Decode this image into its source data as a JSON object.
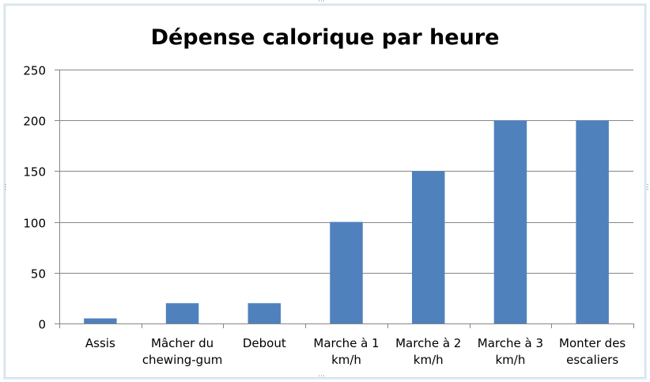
{
  "chart_data": {
    "type": "bar",
    "title": "Dépense calorique par heure",
    "xlabel": "",
    "ylabel": "",
    "categories": [
      [
        "Assis"
      ],
      [
        "Mâcher du",
        "chewing-gum"
      ],
      [
        "Debout"
      ],
      [
        "Marche à 1",
        "km/h"
      ],
      [
        "Marche à 2",
        "km/h"
      ],
      [
        "Marche à 3",
        "km/h"
      ],
      [
        "Monter des",
        "escaliers"
      ]
    ],
    "values": [
      5,
      20,
      20,
      100,
      150,
      200,
      200
    ],
    "ylim": [
      0,
      250
    ],
    "yticks": [
      "0",
      "50",
      "100",
      "150",
      "200",
      "250"
    ],
    "grid": true,
    "legend": "none",
    "bar_color": "#4f81bd",
    "grid_color": "#868686"
  }
}
